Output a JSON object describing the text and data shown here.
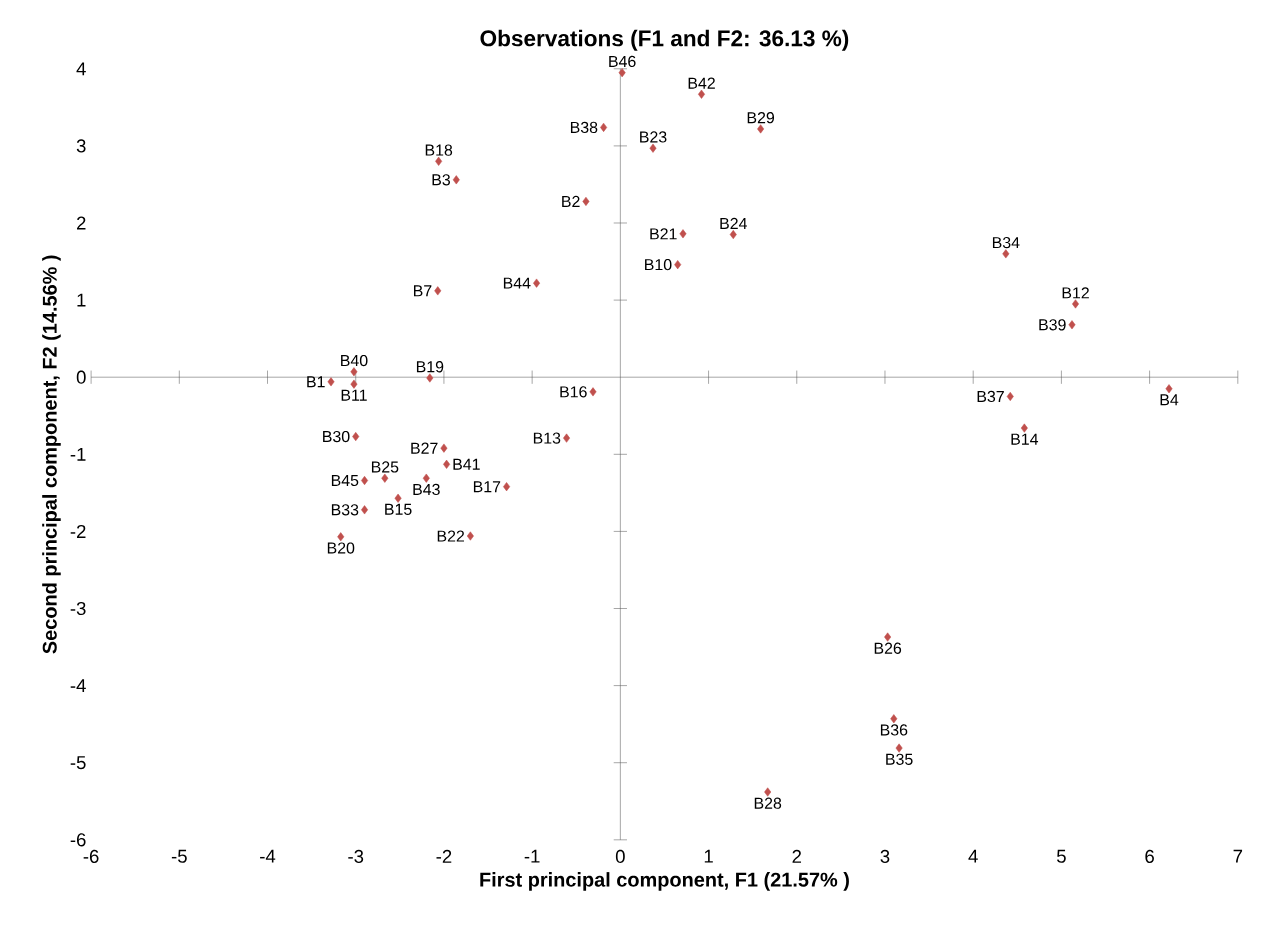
{
  "chart_data": {
    "type": "scatter",
    "title": "Observations (F1 and F2: 36.13 %)",
    "xlabel": "First principal component, F1  (21.57% )",
    "ylabel": "Second principal component, F2  (14.56% )",
    "x": [
      0.02,
      0.92,
      1.59,
      -0.19,
      0.37,
      -2.06,
      -1.86,
      -0.39,
      0.71,
      1.28,
      0.65,
      4.37,
      5.16,
      5.12,
      -2.07,
      -0.95,
      -3.02,
      -2.16,
      -3.28,
      -3.02,
      -0.31,
      4.42,
      6.22,
      4.58,
      -3.0,
      -0.61,
      -2.0,
      -1.97,
      -2.67,
      -2.9,
      -2.2,
      -1.29,
      -2.52,
      -2.9,
      -3.17,
      -1.7,
      3.03,
      3.1,
      3.16,
      1.67
    ],
    "values": [
      3.95,
      3.67,
      3.22,
      3.24,
      2.97,
      2.8,
      2.56,
      2.28,
      1.86,
      1.85,
      1.46,
      1.6,
      0.95,
      0.68,
      1.12,
      1.22,
      0.07,
      -0.01,
      -0.06,
      -0.09,
      -0.19,
      -0.25,
      -0.15,
      -0.66,
      -0.77,
      -0.79,
      -0.92,
      -1.13,
      -1.31,
      -1.34,
      -1.31,
      -1.42,
      -1.57,
      -1.72,
      -2.07,
      -2.06,
      -3.37,
      -4.43,
      -4.81,
      -5.38
    ],
    "color": "#c0504d",
    "marker": "diamond",
    "xlim": [
      -6,
      7
    ],
    "ylim": [
      -6,
      4
    ],
    "xticks": [
      -6,
      -5,
      -4,
      -3,
      -2,
      -1,
      0,
      1,
      2,
      3,
      4,
      5,
      6,
      7
    ],
    "yticks": [
      -6,
      -5,
      -4,
      -3,
      -2,
      -1,
      0,
      1,
      2,
      3,
      4
    ],
    "annotations": [
      {
        "text": "B46",
        "x": 0.02,
        "y": 3.95
      },
      {
        "text": "B42",
        "x": 0.92,
        "y": 3.67
      },
      {
        "text": "B29",
        "x": 1.59,
        "y": 3.22
      },
      {
        "text": "B38",
        "x": -0.19,
        "y": 3.24
      },
      {
        "text": "B23",
        "x": 0.37,
        "y": 2.97
      },
      {
        "text": "B18",
        "x": -2.06,
        "y": 2.8
      },
      {
        "text": "B3",
        "x": -1.86,
        "y": 2.56
      },
      {
        "text": "B2",
        "x": -0.39,
        "y": 2.28
      },
      {
        "text": "B21",
        "x": 0.71,
        "y": 1.86
      },
      {
        "text": "B24",
        "x": 1.28,
        "y": 1.85
      },
      {
        "text": "B10",
        "x": 0.65,
        "y": 1.46
      },
      {
        "text": "B34",
        "x": 4.37,
        "y": 1.6
      },
      {
        "text": "B12",
        "x": 5.16,
        "y": 0.95
      },
      {
        "text": "B39",
        "x": 5.12,
        "y": 0.68
      },
      {
        "text": "B7",
        "x": -2.07,
        "y": 1.12
      },
      {
        "text": "B44",
        "x": -0.95,
        "y": 1.22
      },
      {
        "text": "B40",
        "x": -3.02,
        "y": 0.07
      },
      {
        "text": "B19",
        "x": -2.16,
        "y": -0.01
      },
      {
        "text": "B1",
        "x": -3.28,
        "y": -0.06
      },
      {
        "text": "B11",
        "x": -3.02,
        "y": -0.09
      },
      {
        "text": "B16",
        "x": -0.31,
        "y": -0.19
      },
      {
        "text": "B37",
        "x": 4.42,
        "y": -0.25
      },
      {
        "text": "B4",
        "x": 6.22,
        "y": -0.15
      },
      {
        "text": "B14",
        "x": 4.58,
        "y": -0.66
      },
      {
        "text": "B30",
        "x": -3.0,
        "y": -0.77
      },
      {
        "text": "B13",
        "x": -0.61,
        "y": -0.79
      },
      {
        "text": "B27",
        "x": -2.0,
        "y": -0.92
      },
      {
        "text": "B41",
        "x": -1.97,
        "y": -1.13
      },
      {
        "text": "B25",
        "x": -2.67,
        "y": -1.31
      },
      {
        "text": "B45",
        "x": -2.9,
        "y": -1.34
      },
      {
        "text": "B43",
        "x": -2.2,
        "y": -1.31
      },
      {
        "text": "B17",
        "x": -1.29,
        "y": -1.42
      },
      {
        "text": "B15",
        "x": -2.52,
        "y": -1.57
      },
      {
        "text": "B33",
        "x": -2.9,
        "y": -1.72
      },
      {
        "text": "B20",
        "x": -3.17,
        "y": -2.07
      },
      {
        "text": "B22",
        "x": -1.7,
        "y": -2.06
      },
      {
        "text": "B26",
        "x": 3.03,
        "y": -3.37
      },
      {
        "text": "B36",
        "x": 3.1,
        "y": -4.43
      },
      {
        "text": "B35",
        "x": 3.16,
        "y": -4.81
      },
      {
        "text": "B28",
        "x": 1.67,
        "y": -5.38
      }
    ]
  }
}
